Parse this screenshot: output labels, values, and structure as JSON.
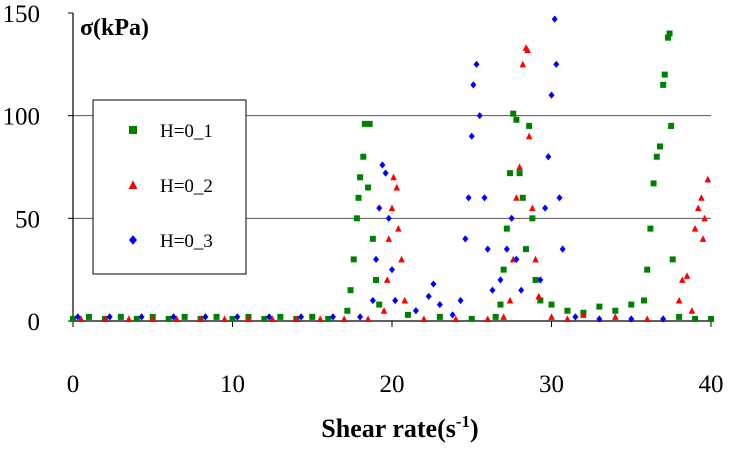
{
  "chart_data": {
    "type": "scatter",
    "title": "σ(kPa)",
    "x_label": [
      "Shear rate(s",
      "-1",
      ")"
    ],
    "xlim": [
      0,
      40
    ],
    "xticks": [
      0,
      10,
      20,
      30,
      40
    ],
    "ylim": [
      0,
      150
    ],
    "yticks": [
      0,
      50,
      100,
      150
    ],
    "grid": true,
    "legend": "upper-left",
    "series": [
      {
        "name": "H=0_1",
        "color": "#008000",
        "marker": "square",
        "x": [
          0,
          1,
          2,
          3,
          4,
          5,
          6,
          7,
          8,
          9,
          10,
          11,
          12,
          13,
          14,
          15,
          16,
          17.2,
          17.4,
          17.6,
          17.8,
          17.9,
          18,
          18.2,
          18.3,
          18.6,
          18.5,
          18.8,
          19,
          19.2,
          21,
          23,
          25,
          26.5,
          26.8,
          27,
          27.2,
          27.4,
          27.6,
          27.8,
          28,
          28.2,
          28.4,
          28.6,
          28.8,
          29,
          29.3,
          30,
          31,
          32,
          33,
          34,
          35,
          35.8,
          36,
          36.2,
          36.4,
          36.6,
          36.8,
          37,
          37.1,
          37.3,
          37.4,
          37.5,
          37.6,
          38,
          39,
          40
        ],
        "values": [
          1,
          2,
          1,
          2,
          1,
          2,
          1,
          2,
          1,
          2,
          1,
          2,
          1,
          2,
          1,
          2,
          1,
          5,
          15,
          30,
          50,
          60,
          70,
          80,
          96,
          96,
          65,
          40,
          20,
          8,
          3,
          2,
          1,
          2,
          8,
          25,
          45,
          72,
          101,
          98,
          72,
          60,
          35,
          95,
          50,
          20,
          10,
          8,
          5,
          4,
          7,
          5,
          8,
          10,
          25,
          45,
          67,
          80,
          85,
          115,
          120,
          138,
          140,
          95,
          30,
          2,
          1,
          1
        ]
      },
      {
        "name": "H=0_2",
        "color": "#ff0000",
        "marker": "triangle",
        "x": [
          0.5,
          2,
          3.5,
          5,
          6.5,
          8,
          9.5,
          11,
          12.5,
          14,
          15.5,
          17,
          18.5,
          19.5,
          19.7,
          19.8,
          20,
          20.1,
          20.3,
          20.4,
          20.6,
          20.8,
          22,
          24,
          26,
          27,
          27.4,
          27.6,
          27.8,
          28,
          28.2,
          28.4,
          28.5,
          28.6,
          28.8,
          29,
          29.2,
          30,
          31,
          32,
          33,
          34,
          35,
          36,
          37,
          38,
          38.2,
          38.5,
          38.8,
          39,
          39.2,
          39.4,
          39.6,
          39.8,
          39.5
        ],
        "values": [
          1,
          1,
          1,
          1,
          1,
          1,
          1,
          1,
          1,
          1,
          1,
          1,
          1,
          5,
          20,
          40,
          55,
          70,
          65,
          45,
          30,
          10,
          1,
          1,
          1,
          2,
          10,
          30,
          60,
          75,
          125,
          133,
          132,
          90,
          55,
          30,
          12,
          2,
          1,
          3,
          1,
          2,
          1,
          1,
          1,
          10,
          20,
          22,
          5,
          45,
          55,
          60,
          50,
          69,
          40
        ]
      },
      {
        "name": "H=0_3",
        "color": "#0000ff",
        "marker": "diamond",
        "x": [
          0.3,
          2.3,
          4.3,
          6.3,
          8.3,
          10.3,
          12.3,
          14.3,
          16.3,
          18,
          18.8,
          19,
          19.2,
          19.4,
          19.6,
          19.8,
          20,
          20.2,
          21.5,
          22.3,
          22.6,
          23,
          23.8,
          24.3,
          24.6,
          24.8,
          25,
          25.1,
          25.3,
          25.5,
          25.8,
          26,
          26.3,
          26.8,
          27.2,
          27.5,
          27.8,
          28.1,
          29.3,
          29.6,
          29.8,
          30,
          30.2,
          30.3,
          30.5,
          30.7,
          31.5,
          33,
          35,
          37
        ],
        "values": [
          2,
          2,
          2,
          2,
          2,
          2,
          2,
          2,
          2,
          2,
          10,
          30,
          55,
          76,
          72,
          50,
          25,
          10,
          5,
          12,
          18,
          8,
          3,
          10,
          40,
          60,
          90,
          115,
          125,
          100,
          60,
          35,
          15,
          20,
          35,
          50,
          30,
          15,
          20,
          55,
          80,
          110,
          147,
          125,
          60,
          35,
          2,
          1,
          1,
          1
        ]
      }
    ]
  }
}
